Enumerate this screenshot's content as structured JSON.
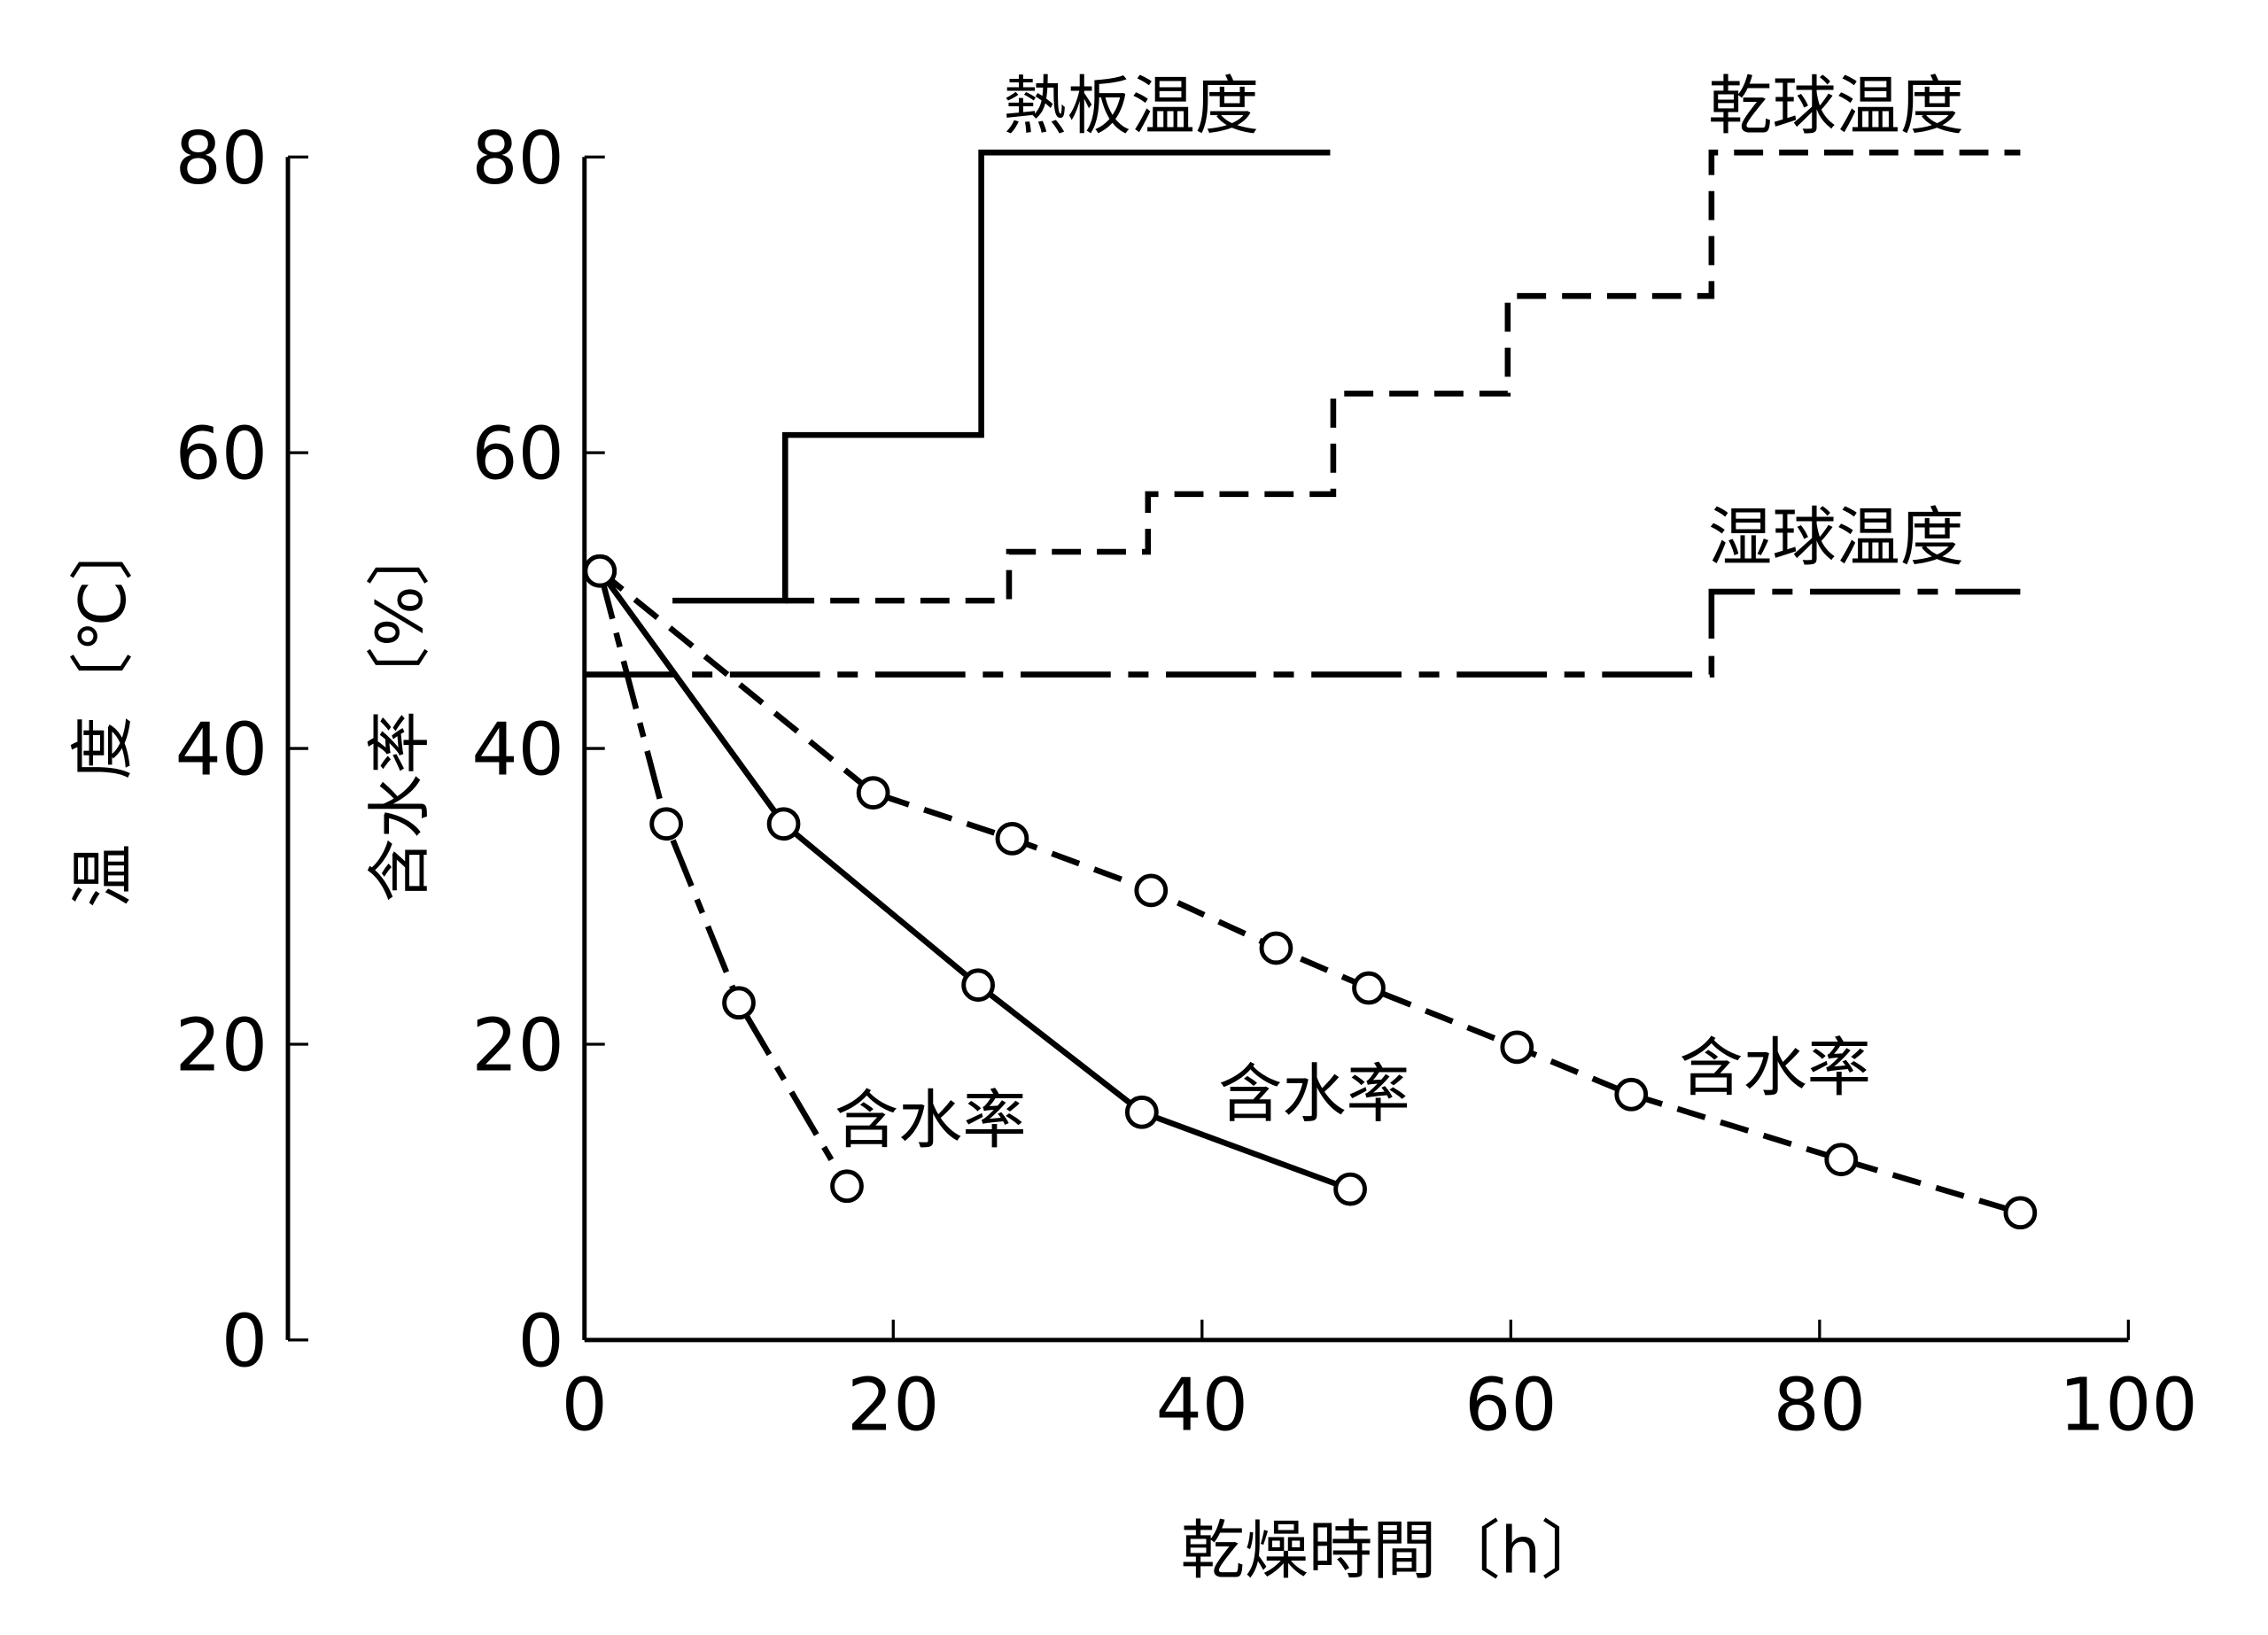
{
  "chart_data": {
    "type": "line",
    "xlabel": "乾燥時間〔h〕",
    "ylabel_left": "温　度〔℃〕",
    "ylabel_right": "含水率〔%〕",
    "xlim": [
      0,
      100
    ],
    "ylim": [
      0,
      80
    ],
    "x_ticks": [
      "0",
      "20",
      "40",
      "60",
      "80",
      "100"
    ],
    "y_ticks_temperature": [
      "0",
      "20",
      "40",
      "60",
      "80"
    ],
    "y_ticks_moisture": [
      "0",
      "20",
      "40",
      "60",
      "80"
    ],
    "grid": false,
    "series": [
      {
        "name": "熱板温度",
        "axis": "temperature",
        "style": "solid-step",
        "points": [
          [
            5.7,
            50
          ],
          [
            13,
            50
          ],
          [
            13,
            61.2
          ],
          [
            25.7,
            61.2
          ],
          [
            25.7,
            80.3
          ],
          [
            48.3,
            80.3
          ]
        ]
      },
      {
        "name": "乾球温度",
        "axis": "temperature",
        "style": "dashed-step",
        "points": [
          [
            13,
            50
          ],
          [
            27.5,
            50
          ],
          [
            27.5,
            53.3
          ],
          [
            36.5,
            53.3
          ],
          [
            36.5,
            57.2
          ],
          [
            48.5,
            57.2
          ],
          [
            48.5,
            64
          ],
          [
            59.8,
            64
          ],
          [
            59.8,
            70.6
          ],
          [
            73,
            70.6
          ],
          [
            73,
            80.3
          ],
          [
            93,
            80.3
          ]
        ]
      },
      {
        "name": "湿球温度",
        "axis": "temperature",
        "style": "dash-dot-step",
        "points": [
          [
            0,
            45
          ],
          [
            73,
            45
          ],
          [
            73,
            50.6
          ],
          [
            93,
            50.6
          ]
        ]
      },
      {
        "name": "含水率",
        "axis": "moisture",
        "style": "dash-dot-markers",
        "points": [
          [
            1,
            52
          ],
          [
            5.3,
            34.9
          ],
          [
            10,
            22.8
          ],
          [
            17,
            10.4
          ]
        ]
      },
      {
        "name": "含水率",
        "axis": "moisture",
        "style": "solid-markers",
        "points": [
          [
            1,
            52
          ],
          [
            12.9,
            34.9
          ],
          [
            25.5,
            24.0
          ],
          [
            36.1,
            15.4
          ],
          [
            49.6,
            10.2
          ]
        ]
      },
      {
        "name": "含水率",
        "axis": "moisture",
        "style": "dashed-markers",
        "points": [
          [
            1,
            52
          ],
          [
            18.7,
            37.0
          ],
          [
            27.7,
            33.9
          ],
          [
            36.7,
            30.4
          ],
          [
            44.8,
            26.5
          ],
          [
            50.8,
            23.8
          ],
          [
            60.4,
            19.8
          ],
          [
            67.8,
            16.6
          ],
          [
            81.4,
            12.2
          ],
          [
            93.0,
            8.6
          ]
        ]
      }
    ]
  }
}
